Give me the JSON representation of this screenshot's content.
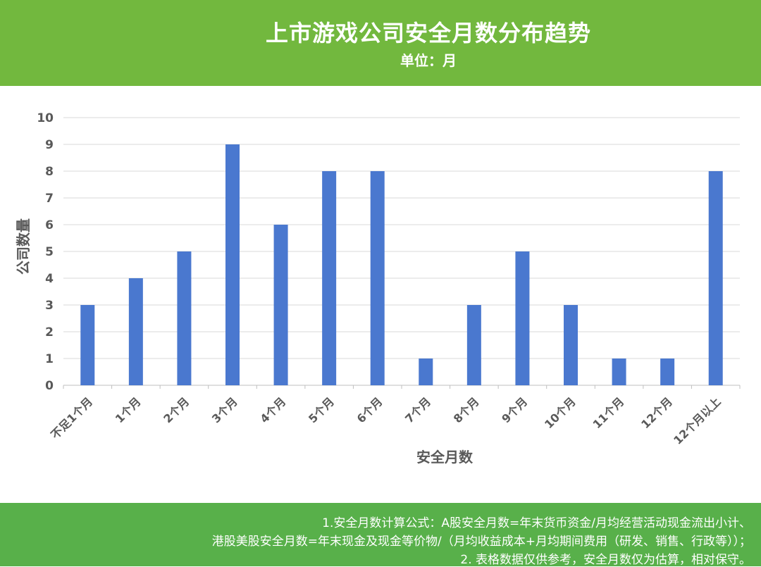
{
  "header": {
    "title": "上市游戏公司安全月数分布趋势",
    "subtitle": "单位：月",
    "background": "#72b83e"
  },
  "chart_data": {
    "type": "bar",
    "title": "上市游戏公司安全月数分布趋势",
    "subtitle": "单位：月",
    "xlabel": "安全月数",
    "ylabel": "公司数量",
    "categories": [
      "不足1个月",
      "1个月",
      "2个月",
      "3个月",
      "4个月",
      "5个月",
      "6个月",
      "7个月",
      "8个月",
      "9个月",
      "10个月",
      "11个月",
      "12个月",
      "12个月以上"
    ],
    "values": [
      3,
      4,
      5,
      9,
      6,
      8,
      8,
      1,
      3,
      5,
      3,
      1,
      1,
      8
    ],
    "ylim": [
      0,
      10
    ],
    "yticks": [
      0,
      1,
      2,
      3,
      4,
      5,
      6,
      7,
      8,
      9,
      10
    ],
    "grid": true,
    "bar_color": "#4a78cf",
    "grid_color": "#d9d9d9",
    "label_color": "#595959"
  },
  "footer": {
    "background": "#58b04a",
    "notes": [
      "1.安全月数计算公式：A股安全月数=年末货币资金/月均经营活动现金流出小计、",
      "港股美股安全月数=年末现金及现金等价物/（月均收益成本+月均期间费用（研发、销售、行政等））；",
      "2. 表格数据仅供参考，安全月数仅为估算，相对保守。"
    ]
  }
}
